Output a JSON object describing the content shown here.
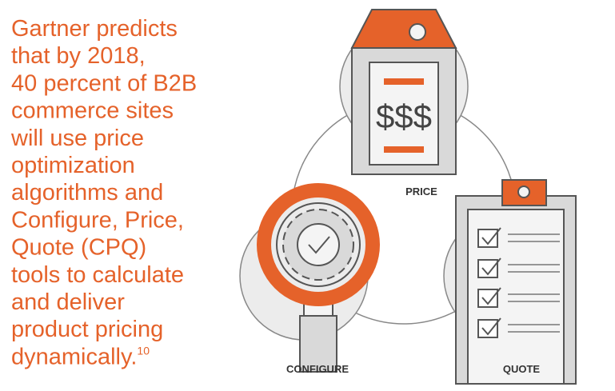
{
  "text": {
    "lines": [
      "Gartner predicts",
      "that by 2018,",
      "40 percent of B2B",
      "commerce sites",
      "will use price",
      "optimization",
      "algorithms and",
      "Configure, Price,",
      "Quote (CPQ)",
      "tools to calculate",
      "and deliver",
      "product pricing",
      "dynamically."
    ],
    "footnote": "10"
  },
  "diagram": {
    "price_symbol": "$$$",
    "labels": [
      "PRICE",
      "CONFIGURE",
      "QUOTE"
    ]
  }
}
